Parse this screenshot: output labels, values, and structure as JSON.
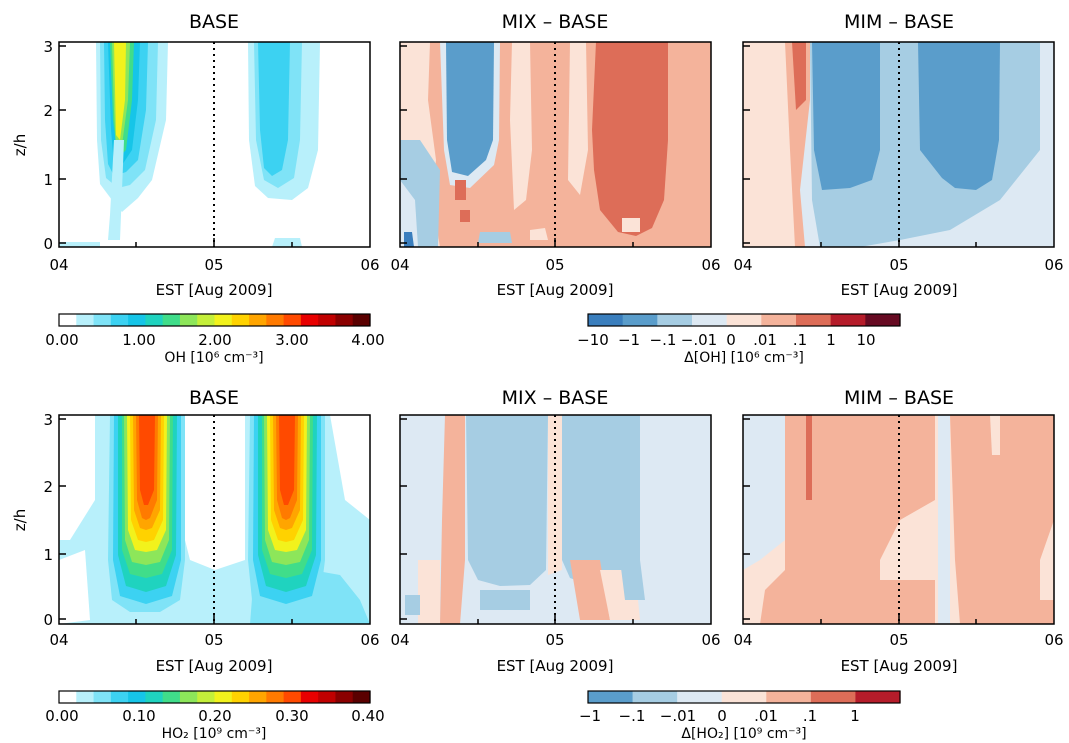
{
  "chart_data": {
    "type": "heatmap",
    "x_ticks": [
      "04",
      "05",
      "06"
    ],
    "x_label": "EST [Aug 2009]",
    "y_ticks": [
      "0",
      "1",
      "2",
      "3"
    ],
    "y_label": "z/h",
    "ylim": [
      0,
      3
    ],
    "dotted_line_at": "05",
    "rows": [
      {
        "quantity": "OH",
        "panels": [
          {
            "title": "BASE",
            "scale": "abs"
          },
          {
            "title": "MIX – BASE",
            "scale": "diff"
          },
          {
            "title": "MIM – BASE",
            "scale": "diff"
          }
        ],
        "abs_colorbar": {
          "ticks": [
            "0.00",
            "1.00",
            "2.00",
            "3.00",
            "4.00"
          ],
          "label": "OH [10⁶ cm⁻³]",
          "colors": [
            "#ffffff",
            "#b8f0fb",
            "#7fe3f7",
            "#3cd2f2",
            "#16c5e8",
            "#1fd3bf",
            "#40dd8a",
            "#8de65a",
            "#c4ef3a",
            "#f2f21c",
            "#ffd200",
            "#ffa500",
            "#ff7a00",
            "#ff4a00",
            "#e80000",
            "#c00000",
            "#8a0000",
            "#5a0000"
          ]
        },
        "diff_colorbar": {
          "ticks": [
            "−10",
            "−1",
            "−.1",
            "−.01",
            "0",
            ".01",
            ".1",
            "1",
            "10"
          ],
          "label": "Δ[OH] [10⁶ cm⁻³]",
          "colors": [
            "#3a7ebd",
            "#5a9dcb",
            "#a6cde3",
            "#dde9f3",
            "#fbe3d7",
            "#f4b39b",
            "#dd6d58",
            "#b51c2a",
            "#660a22"
          ]
        }
      },
      {
        "quantity": "HO2",
        "panels": [
          {
            "title": "BASE",
            "scale": "abs"
          },
          {
            "title": "MIX – BASE",
            "scale": "diff"
          },
          {
            "title": "MIM – BASE",
            "scale": "diff"
          }
        ],
        "abs_colorbar": {
          "ticks": [
            "0.00",
            "0.10",
            "0.20",
            "0.30",
            "0.40"
          ],
          "label": "HO₂ [10⁹ cm⁻³]",
          "colors": [
            "#ffffff",
            "#b8f0fb",
            "#7fe3f7",
            "#3cd2f2",
            "#16c5e8",
            "#1fd3bf",
            "#40dd8a",
            "#8de65a",
            "#c4ef3a",
            "#f2f21c",
            "#ffd200",
            "#ffa500",
            "#ff7a00",
            "#ff4a00",
            "#e80000",
            "#c00000",
            "#8a0000",
            "#5a0000"
          ]
        },
        "diff_colorbar": {
          "ticks": [
            "−1",
            "−.1",
            "−.01",
            "0",
            ".01",
            ".1",
            "1"
          ],
          "label": "Δ[HO₂] [10⁹ cm⁻³]",
          "colors": [
            "#5a9dcb",
            "#a6cde3",
            "#dde9f3",
            "#fbe3d7",
            "#f4b39b",
            "#dd6d58",
            "#b51c2a"
          ]
        }
      }
    ]
  }
}
